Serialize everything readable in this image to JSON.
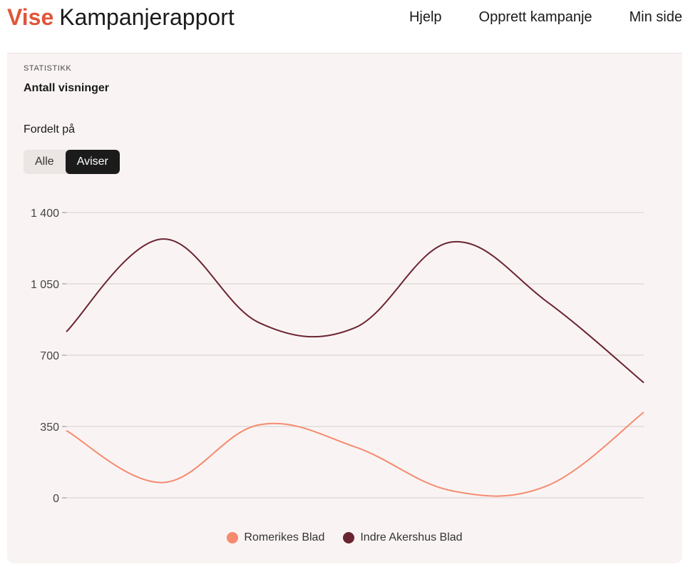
{
  "header": {
    "brand": "Vise",
    "title": "Kampanjerapport",
    "nav": [
      "Hjelp",
      "Opprett kampanje",
      "Min side"
    ]
  },
  "panel": {
    "eyebrow": "STATISTIKK",
    "heading": "Antall visninger",
    "filter_label": "Fordelt på",
    "toggle": [
      {
        "label": "Alle",
        "active": false
      },
      {
        "label": "Aviser",
        "active": true
      }
    ]
  },
  "colors": {
    "accent": "#e0553a",
    "series1": "#f68a6f",
    "series2": "#6b2431",
    "grid": "#dcd6d4"
  },
  "chart_data": {
    "type": "line",
    "title": "",
    "xlabel": "",
    "ylabel": "",
    "ylim": [
      0,
      1400
    ],
    "yticks": [
      0,
      350,
      700,
      1050,
      1400
    ],
    "ytick_labels": [
      "0",
      "350",
      "700",
      "1 050",
      "1 400"
    ],
    "x": [
      0,
      1,
      2,
      3,
      4,
      5,
      6
    ],
    "series": [
      {
        "name": "Romerikes Blad",
        "color": "#f68a6f",
        "values": [
          330,
          75,
          358,
          250,
          35,
          60,
          420
        ]
      },
      {
        "name": "Indre Akershus Blad",
        "color": "#6b2431",
        "values": [
          815,
          1270,
          860,
          835,
          1255,
          960,
          565
        ]
      }
    ],
    "legend": "bottom-center",
    "grid": true
  }
}
